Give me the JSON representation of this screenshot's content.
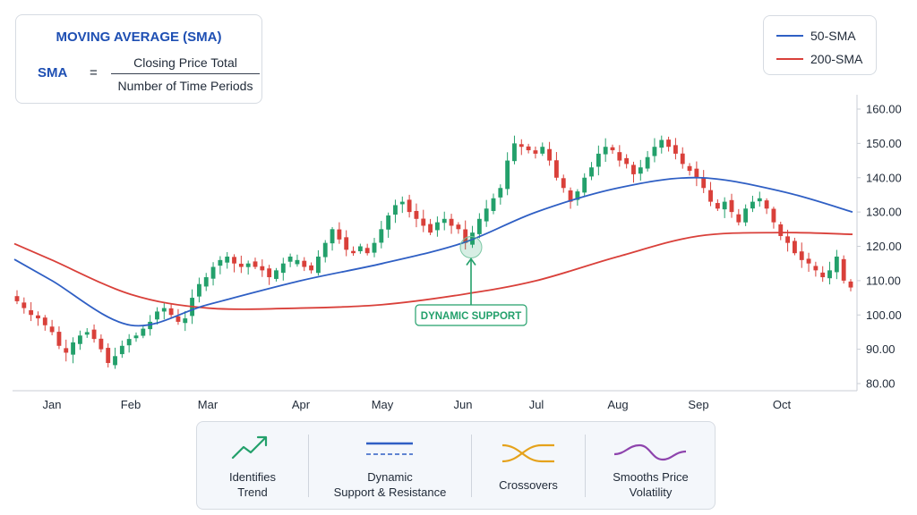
{
  "formula": {
    "title": "MOVING AVERAGE (SMA)",
    "lhs": "SMA",
    "equals": "=",
    "numerator": "Closing Price Total",
    "denominator": "Number of Time Periods"
  },
  "legend": [
    {
      "name": "50-SMA",
      "color": "#2f5fc4"
    },
    {
      "name": "200-SMA",
      "color": "#d9403a"
    }
  ],
  "chart_data": {
    "type": "candlestick",
    "x_ticks": [
      "Jan",
      "Feb",
      "Mar",
      "Apr",
      "May",
      "Jun",
      "Jul",
      "Aug",
      "Sep",
      "Oct"
    ],
    "y_ticks": [
      "160.00",
      "150.00",
      "140.00",
      "130.00",
      "120.00",
      "110.00",
      "100.00",
      "90.00",
      "80.00"
    ],
    "ylim": [
      80,
      160
    ],
    "y_axis_side": "right",
    "grid": false,
    "up_color": "#23a06b",
    "down_color": "#d9403a",
    "candle_closes_approx": [
      104,
      102,
      100,
      99,
      97,
      95,
      91,
      89,
      92,
      94,
      95,
      93,
      90,
      86,
      88,
      91,
      93,
      94,
      96,
      98,
      101,
      102,
      100,
      98,
      99,
      105,
      109,
      111,
      114,
      116,
      117,
      115,
      114,
      115,
      114,
      113,
      111,
      113,
      115,
      117,
      116,
      114,
      113,
      117,
      121,
      125,
      122,
      119,
      118,
      120,
      118,
      121,
      125,
      129,
      132,
      133,
      130,
      128,
      126,
      124,
      127,
      128,
      126,
      125,
      121,
      124,
      128,
      131,
      134,
      137,
      145,
      150,
      149,
      148,
      147,
      149,
      145,
      140,
      137,
      133,
      136,
      140,
      143,
      147,
      149,
      148,
      145,
      144,
      141,
      143,
      146,
      149,
      151,
      149,
      147,
      144,
      142,
      140,
      137,
      133,
      131,
      133,
      130,
      127,
      131,
      133,
      134,
      131,
      127,
      123,
      121,
      118,
      116,
      115,
      113,
      111,
      113,
      117,
      110,
      108
    ],
    "series": [
      {
        "name": "50-SMA",
        "color": "#2f5fc4",
        "points": [
          [
            "Jan",
            110
          ],
          [
            "Feb",
            97
          ],
          [
            "Mar",
            103
          ],
          [
            "Apr",
            110
          ],
          [
            "May",
            115
          ],
          [
            "Jun",
            121
          ],
          [
            "Jul",
            130
          ],
          [
            "Aug",
            137
          ],
          [
            "Sep",
            140
          ],
          [
            "Oct",
            136
          ],
          [
            "end",
            130
          ]
        ]
      },
      {
        "name": "200-SMA",
        "color": "#d9403a",
        "points": [
          [
            "Jan",
            116
          ],
          [
            "Feb",
            106
          ],
          [
            "Mar",
            102
          ],
          [
            "Apr",
            102
          ],
          [
            "May",
            103
          ],
          [
            "Jun",
            106
          ],
          [
            "Jul",
            110
          ],
          [
            "Aug",
            117
          ],
          [
            "Sep",
            123
          ],
          [
            "Oct",
            124
          ],
          [
            "end",
            123.5
          ]
        ]
      }
    ],
    "annotation": {
      "text": "DYNAMIC SUPPORT",
      "month": "Jun",
      "price": 120
    }
  },
  "benefits": [
    {
      "icon": "trend-arrow-icon",
      "line1": "Identifies",
      "line2": "Trend",
      "color": "#23a06b"
    },
    {
      "icon": "support-resistance-lines-icon",
      "line1": "Dynamic",
      "line2": "Support & Resistance",
      "color": "#2f5fc4"
    },
    {
      "icon": "crossover-icon",
      "line1": "Crossovers",
      "line2": "",
      "color": "#e5a21b"
    },
    {
      "icon": "smooth-wave-icon",
      "line1": "Smooths Price",
      "line2": "Volatility",
      "color": "#8e44ad"
    }
  ]
}
